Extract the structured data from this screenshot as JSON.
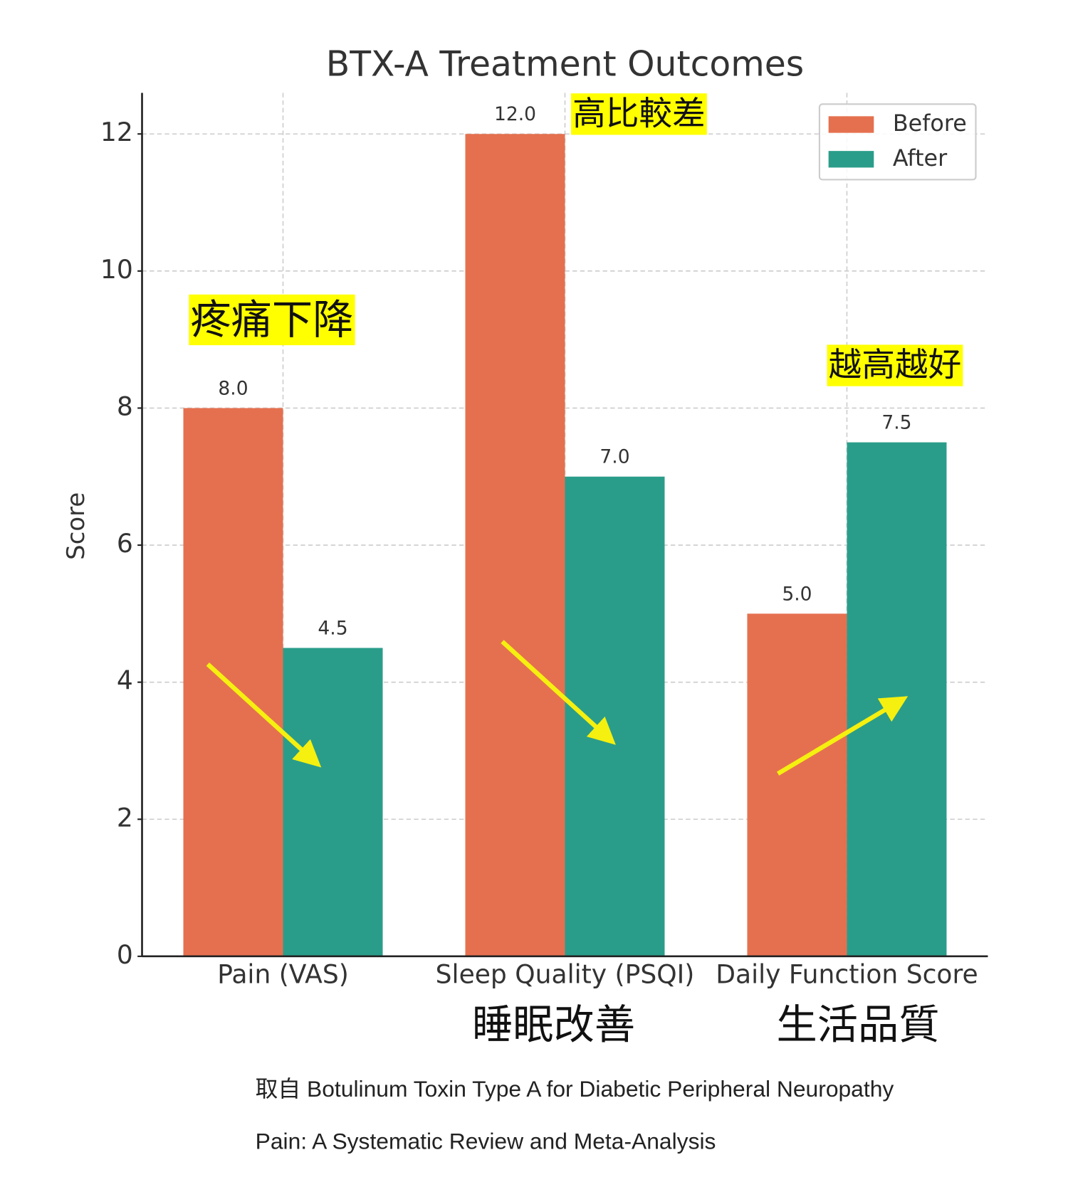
{
  "chart_data": {
    "type": "bar",
    "title": "BTX-A Treatment Outcomes",
    "y_label": "Score",
    "categories": [
      "Pain (VAS)",
      "Sleep Quality (PSQI)",
      "Daily Function Score"
    ],
    "series": [
      {
        "name": "Before",
        "color": "#e5704f",
        "values": [
          8,
          12,
          5
        ],
        "value_labels": [
          "8.0",
          "12.0",
          "5.0"
        ]
      },
      {
        "name": "After",
        "color": "#2a9d8a",
        "values": [
          4.5,
          7,
          7.5
        ],
        "value_labels": [
          "4.5",
          "7.0",
          "7.5"
        ]
      }
    ],
    "ylim": [
      0,
      12.6
    ],
    "yticks": [
      0,
      2,
      4,
      6,
      8,
      10,
      12
    ],
    "grid": true,
    "legend": "upper right",
    "annotations": [
      "疼痛下降",
      "高比較差",
      "越高越好",
      "睡眠改善",
      "生活品質"
    ],
    "source": [
      "取自 Botulinum Toxin Type A for Diabetic Peripheral Neuropathy",
      "Pain: A Systematic Review and Meta-Analysis"
    ]
  }
}
